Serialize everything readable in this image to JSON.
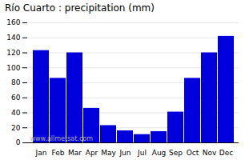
{
  "chart_data": {
    "type": "bar",
    "title": "Río Cuarto : precipitation (mm)",
    "categories": [
      "Jan",
      "Feb",
      "Mar",
      "Apr",
      "May",
      "Jun",
      "Jul",
      "Aug",
      "Sep",
      "Oct",
      "Nov",
      "Dec"
    ],
    "values": [
      123,
      86,
      120,
      46,
      23,
      16,
      11,
      15,
      41,
      86,
      120,
      142
    ],
    "color": "#0000dd",
    "ylim": [
      0,
      160
    ],
    "yticks": [
      0,
      20,
      40,
      60,
      80,
      100,
      120,
      140,
      160
    ],
    "grid": true,
    "annotations": [
      "www.allmetsat.com"
    ]
  }
}
